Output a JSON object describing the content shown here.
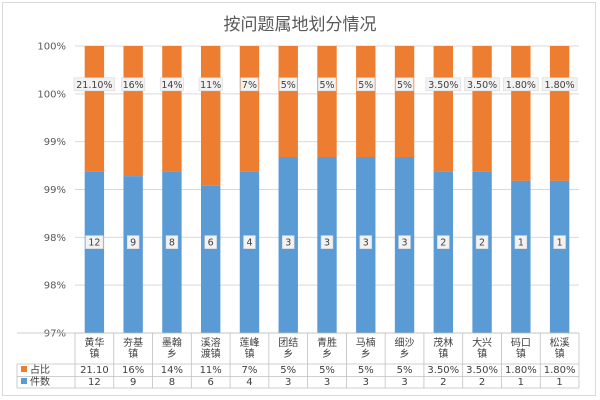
{
  "chart_data": {
    "type": "bar",
    "stacked": "percent",
    "title": "按问题属地划分情况",
    "categories": [
      "黄华镇",
      "夯基镇",
      "墨翰乡",
      "溪溶渡镇",
      "莲峰镇",
      "团结乡",
      "青胜乡",
      "马楠乡",
      "细沙乡",
      "茂林镇",
      "大兴镇",
      "码口镇",
      "松溪镇"
    ],
    "category_lines": [
      [
        "黄华",
        "镇"
      ],
      [
        "夯基",
        "镇"
      ],
      [
        "墨翰",
        "乡"
      ],
      [
        "溪溶",
        "渡镇"
      ],
      [
        "莲峰",
        "镇"
      ],
      [
        "团结",
        "乡"
      ],
      [
        "青胜",
        "乡"
      ],
      [
        "马楠",
        "乡"
      ],
      [
        "细沙",
        "乡"
      ],
      [
        "茂林",
        "镇"
      ],
      [
        "大兴",
        "镇"
      ],
      [
        "码口",
        "镇"
      ],
      [
        "松溪",
        "镇"
      ]
    ],
    "y_tick_labels": [
      "97%",
      "98%",
      "98%",
      "99%",
      "99%",
      "100%",
      "100%"
    ],
    "ylim": [
      97,
      100
    ],
    "series": [
      {
        "name": "件数",
        "color": "#5b9bd5",
        "values": [
          12,
          9,
          8,
          6,
          4,
          3,
          3,
          3,
          3,
          2,
          2,
          1,
          1
        ],
        "labels": [
          "12",
          "9",
          "8",
          "6",
          "4",
          "3",
          "3",
          "3",
          "3",
          "2",
          "2",
          "1",
          "1"
        ],
        "table_values": [
          "12",
          "9",
          "8",
          "6",
          "4",
          "3",
          "3",
          "3",
          "3",
          "2",
          "2",
          "1",
          "1"
        ],
        "top_percent": [
          98.69,
          98.64,
          98.69,
          98.54,
          98.69,
          98.84,
          98.84,
          98.84,
          98.84,
          98.69,
          98.69,
          98.59,
          98.59
        ]
      },
      {
        "name": "占比",
        "color": "#ed7d31",
        "labels": [
          "21.10%",
          "16%",
          "14%",
          "11%",
          "7%",
          "5%",
          "5%",
          "5%",
          "5%",
          "3.50%",
          "3.50%",
          "1.80%",
          "1.80%"
        ],
        "table_values": [
          "21.10",
          "16%",
          "14%",
          "11%",
          "7%",
          "5%",
          "5%",
          "5%",
          "5%",
          "3.50%",
          "3.50%",
          "1.80%",
          "1.80%"
        ]
      }
    ],
    "legend": "bottom-table"
  }
}
